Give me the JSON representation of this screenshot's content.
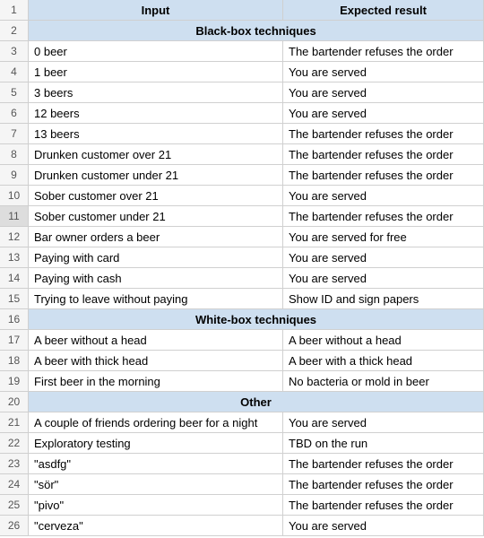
{
  "colors": {
    "header_bg": "#cedff0",
    "section_bg": "#cedff0",
    "rownum_bg": "#f5f5f5",
    "border": "#d0d0d0",
    "rownum_selected_bg": "#dddddd"
  },
  "headers": {
    "input": "Input",
    "expected": "Expected result"
  },
  "sections": {
    "blackbox": "Black-box techniques",
    "whitebox": "White-box techniques",
    "other": "Other"
  },
  "rows": {
    "r3": {
      "input": "0 beer",
      "expected": "The bartender refuses the order"
    },
    "r4": {
      "input": "1 beer",
      "expected": "You are served"
    },
    "r5": {
      "input": "3 beers",
      "expected": "You are served"
    },
    "r6": {
      "input": "12 beers",
      "expected": "You are served"
    },
    "r7": {
      "input": "13 beers",
      "expected": "The bartender refuses the order"
    },
    "r8": {
      "input": "Drunken customer over 21",
      "expected": "The bartender refuses the order"
    },
    "r9": {
      "input": "Drunken customer under 21",
      "expected": "The bartender refuses the order"
    },
    "r10": {
      "input": "Sober customer over 21",
      "expected": "You are served"
    },
    "r11": {
      "input": "Sober customer under 21",
      "expected": "The bartender refuses the order"
    },
    "r12": {
      "input": "Bar owner orders a beer",
      "expected": "You are served for free"
    },
    "r13": {
      "input": "Paying with card",
      "expected": "You are served"
    },
    "r14": {
      "input": "Paying with cash",
      "expected": "You are served"
    },
    "r15": {
      "input": "Trying to leave without paying",
      "expected": "Show ID and sign papers"
    },
    "r17": {
      "input": "A beer without a head",
      "expected": "A beer without a head"
    },
    "r18": {
      "input": "A beer with thick head",
      "expected": "A beer with a thick head"
    },
    "r19": {
      "input": "First beer in the morning",
      "expected": "No bacteria or mold in beer"
    },
    "r21": {
      "input": "A couple of friends ordering beer for a night",
      "expected": "You are served"
    },
    "r22": {
      "input": "Exploratory testing",
      "expected": "TBD on the run"
    },
    "r23": {
      "input": "\"asdfg\"",
      "expected": "The bartender refuses the order"
    },
    "r24": {
      "input": "\"sör\"",
      "expected": "The bartender refuses the order"
    },
    "r25": {
      "input": "\"pivo\"",
      "expected": "The bartender refuses the order"
    },
    "r26": {
      "input": "\"cerveza\"",
      "expected": "You are served"
    }
  },
  "rownums": {
    "n1": "1",
    "n2": "2",
    "n3": "3",
    "n4": "4",
    "n5": "5",
    "n6": "6",
    "n7": "7",
    "n8": "8",
    "n9": "9",
    "n10": "10",
    "n11": "11",
    "n12": "12",
    "n13": "13",
    "n14": "14",
    "n15": "15",
    "n16": "16",
    "n17": "17",
    "n18": "18",
    "n19": "19",
    "n20": "20",
    "n21": "21",
    "n22": "22",
    "n23": "23",
    "n24": "24",
    "n25": "25",
    "n26": "26"
  },
  "selected_row": 11
}
